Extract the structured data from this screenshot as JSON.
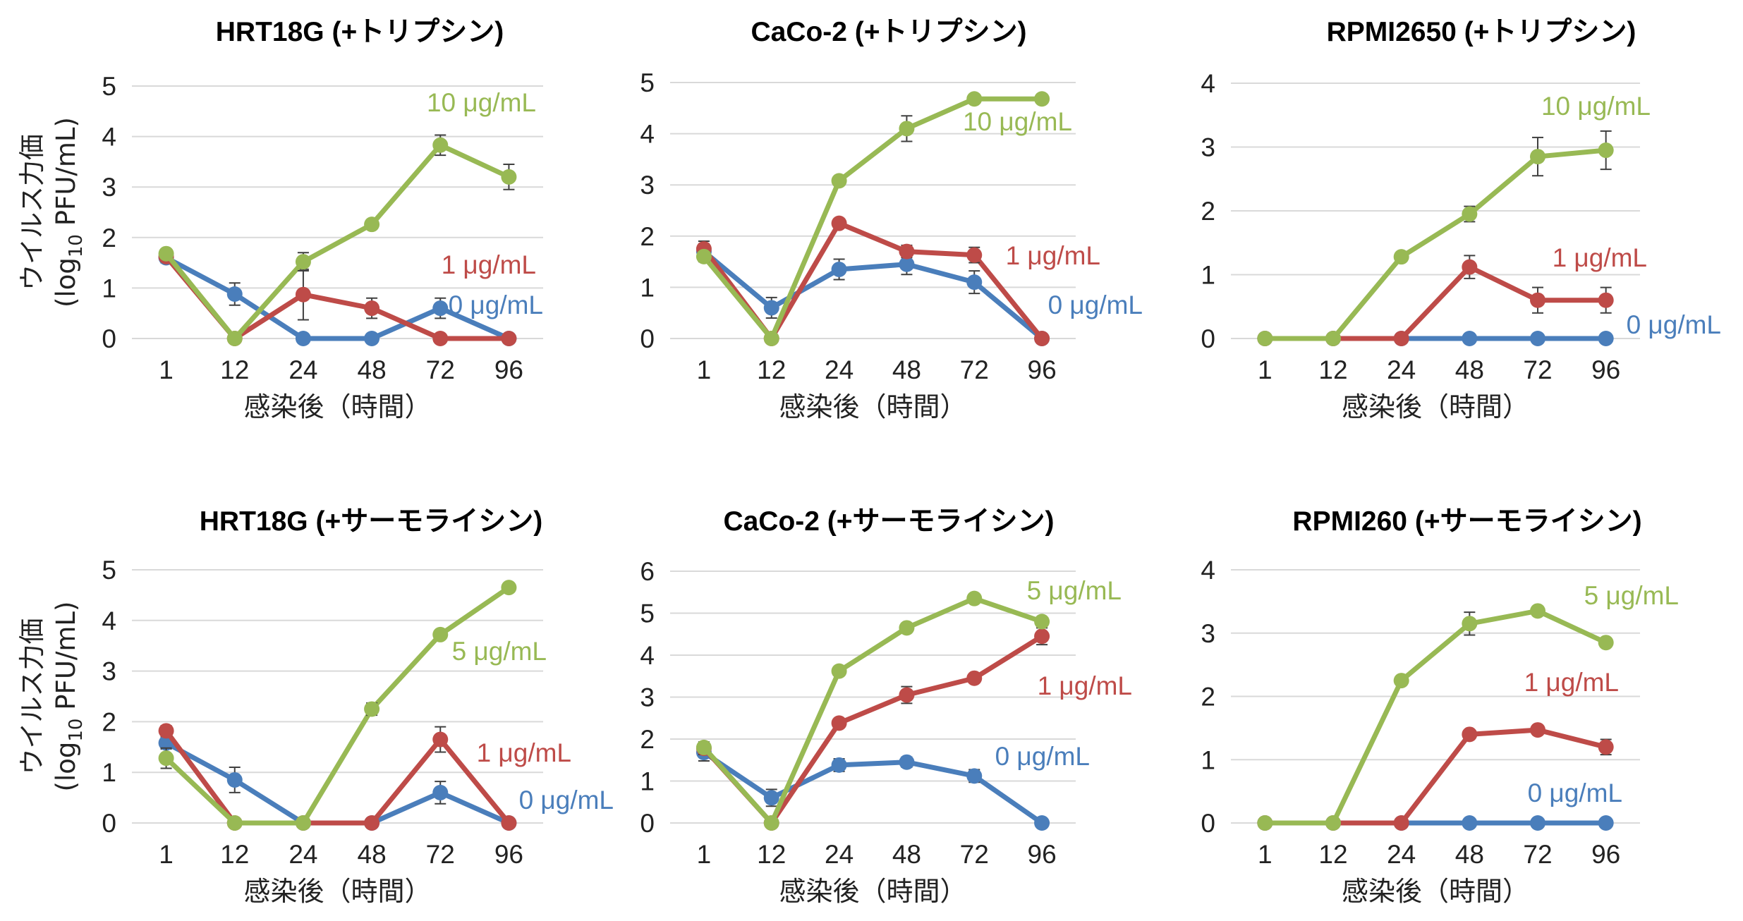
{
  "colors": {
    "s0": "#4a7ebb",
    "s1": "#be4b48",
    "s2": "#98b954"
  },
  "chart_data": [
    {
      "type": "line",
      "title": "HRT18G (+トリプシン)",
      "xlabel": "感染後（時間）",
      "ylabel": [
        "ウイルス力価",
        "(log",
        "10",
        " PFU/mL)"
      ],
      "categories": [
        "1",
        "12",
        "24",
        "48",
        "72",
        "96"
      ],
      "ylim": [
        0,
        5
      ],
      "yticks": [
        0,
        1,
        2,
        3,
        4,
        5
      ],
      "series": [
        {
          "name": "0 μg/mL",
          "color": "#4a7ebb",
          "values": [
            1.6,
            0.88,
            0,
            0,
            0.6,
            0
          ],
          "errors": [
            0.1,
            0.22,
            0,
            0,
            0.2,
            0
          ]
        },
        {
          "name": "1 μg/mL",
          "color": "#be4b48",
          "values": [
            1.62,
            0,
            0.87,
            0.6,
            0,
            0
          ],
          "errors": [
            0.1,
            0,
            0.5,
            0.2,
            0,
            0
          ]
        },
        {
          "name": "10 μg/mL",
          "color": "#98b954",
          "values": [
            1.68,
            0,
            1.52,
            2.26,
            3.83,
            3.2
          ],
          "errors": [
            0.05,
            0,
            0.18,
            0.05,
            0.2,
            0.25
          ]
        }
      ]
    },
    {
      "type": "line",
      "title": "CaCo-2 (+トリプシン)",
      "xlabel": "感染後（時間）",
      "categories": [
        "1",
        "12",
        "24",
        "48",
        "72",
        "96"
      ],
      "ylim": [
        0,
        5
      ],
      "yticks": [
        0,
        1,
        2,
        3,
        4,
        5
      ],
      "series": [
        {
          "name": "0 μg/mL",
          "color": "#4a7ebb",
          "values": [
            1.7,
            0.6,
            1.35,
            1.45,
            1.1,
            0
          ],
          "errors": [
            0.15,
            0.2,
            0.2,
            0.2,
            0.22,
            0
          ]
        },
        {
          "name": "1 μg/mL",
          "color": "#be4b48",
          "values": [
            1.75,
            0,
            2.25,
            1.7,
            1.63,
            0
          ],
          "errors": [
            0.15,
            0,
            0.05,
            0.12,
            0.15,
            0
          ]
        },
        {
          "name": "10 μg/mL",
          "color": "#98b954",
          "values": [
            1.6,
            0,
            3.08,
            4.1,
            4.68,
            4.68
          ],
          "errors": [
            0.1,
            0,
            0.05,
            0.25,
            0.05,
            0.05
          ]
        }
      ]
    },
    {
      "type": "line",
      "title": "RPMI2650 (+トリプシン)",
      "xlabel": "感染後（時間）",
      "categories": [
        "1",
        "12",
        "24",
        "48",
        "72",
        "96"
      ],
      "ylim": [
        0,
        4
      ],
      "yticks": [
        0,
        1,
        2,
        3,
        4
      ],
      "series": [
        {
          "name": "0 μg/mL",
          "color": "#4a7ebb",
          "values": [
            0,
            0,
            0,
            0,
            0,
            0
          ],
          "errors": [
            0,
            0,
            0,
            0,
            0,
            0
          ]
        },
        {
          "name": "1 μg/mL",
          "color": "#be4b48",
          "values": [
            0,
            0,
            0,
            1.12,
            0.6,
            0.6
          ],
          "errors": [
            0,
            0,
            0,
            0.18,
            0.2,
            0.2
          ]
        },
        {
          "name": "10 μg/mL",
          "color": "#98b954",
          "values": [
            0,
            0,
            1.28,
            1.95,
            2.85,
            2.95
          ],
          "errors": [
            0,
            0,
            0.05,
            0.12,
            0.3,
            0.3
          ]
        }
      ]
    },
    {
      "type": "line",
      "title": "HRT18G (+サーモライシン)",
      "xlabel": "感染後（時間）",
      "ylabel": [
        "ウイルス力価",
        "(log",
        "10",
        " PFU/mL)"
      ],
      "categories": [
        "1",
        "12",
        "24",
        "48",
        "72",
        "96"
      ],
      "ylim": [
        0,
        5
      ],
      "yticks": [
        0,
        1,
        2,
        3,
        4,
        5
      ],
      "series": [
        {
          "name": "0 μg/mL",
          "color": "#4a7ebb",
          "values": [
            1.58,
            0.85,
            0,
            0,
            0.6,
            0
          ],
          "errors": [
            0.12,
            0.25,
            0,
            0,
            0.22,
            0
          ]
        },
        {
          "name": "1 μg/mL",
          "color": "#be4b48",
          "values": [
            1.82,
            0,
            0,
            0,
            1.65,
            0
          ],
          "errors": [
            0.1,
            0,
            0,
            0,
            0.25,
            0
          ]
        },
        {
          "name": "5 μg/mL",
          "color": "#98b954",
          "values": [
            1.28,
            0,
            0,
            2.25,
            3.72,
            4.65
          ],
          "errors": [
            0.2,
            0,
            0,
            0.12,
            0.05,
            0.05
          ]
        }
      ]
    },
    {
      "type": "line",
      "title": "CaCo-2 (+サーモライシン)",
      "xlabel": "感染後（時間）",
      "categories": [
        "1",
        "12",
        "24",
        "48",
        "72",
        "96"
      ],
      "ylim": [
        0,
        6
      ],
      "yticks": [
        0,
        1,
        2,
        3,
        4,
        5,
        6
      ],
      "series": [
        {
          "name": "0 μg/mL",
          "color": "#4a7ebb",
          "values": [
            1.68,
            0.6,
            1.38,
            1.45,
            1.12,
            0
          ],
          "errors": [
            0.2,
            0.2,
            0.15,
            0.12,
            0.15,
            0
          ]
        },
        {
          "name": "1 μg/mL",
          "color": "#be4b48",
          "values": [
            1.78,
            0,
            2.38,
            3.05,
            3.45,
            4.45
          ],
          "errors": [
            0.15,
            0,
            0.1,
            0.2,
            0.1,
            0.2
          ]
        },
        {
          "name": "5 μg/mL",
          "color": "#98b954",
          "values": [
            1.8,
            0,
            3.62,
            4.65,
            5.35,
            4.8
          ],
          "errors": [
            0.1,
            0,
            0.05,
            0.1,
            0.05,
            0.1
          ]
        }
      ]
    },
    {
      "type": "line",
      "title": "RPMI260 (+サーモライシン)",
      "xlabel": "感染後（時間）",
      "categories": [
        "1",
        "12",
        "24",
        "48",
        "72",
        "96"
      ],
      "ylim": [
        0,
        4
      ],
      "yticks": [
        0,
        1,
        2,
        3,
        4
      ],
      "series": [
        {
          "name": "0 μg/mL",
          "color": "#4a7ebb",
          "values": [
            0,
            0,
            0,
            0,
            0,
            0
          ],
          "errors": [
            0,
            0,
            0,
            0,
            0,
            0
          ]
        },
        {
          "name": "1 μg/mL",
          "color": "#be4b48",
          "values": [
            0,
            0,
            0,
            1.4,
            1.47,
            1.2
          ],
          "errors": [
            0,
            0,
            0,
            0.05,
            0.05,
            0.12
          ]
        },
        {
          "name": "5 μg/mL",
          "color": "#98b954",
          "values": [
            0,
            0,
            2.25,
            3.15,
            3.35,
            2.85
          ],
          "errors": [
            0,
            0,
            0.05,
            0.18,
            0.05,
            0.05
          ]
        }
      ]
    }
  ]
}
